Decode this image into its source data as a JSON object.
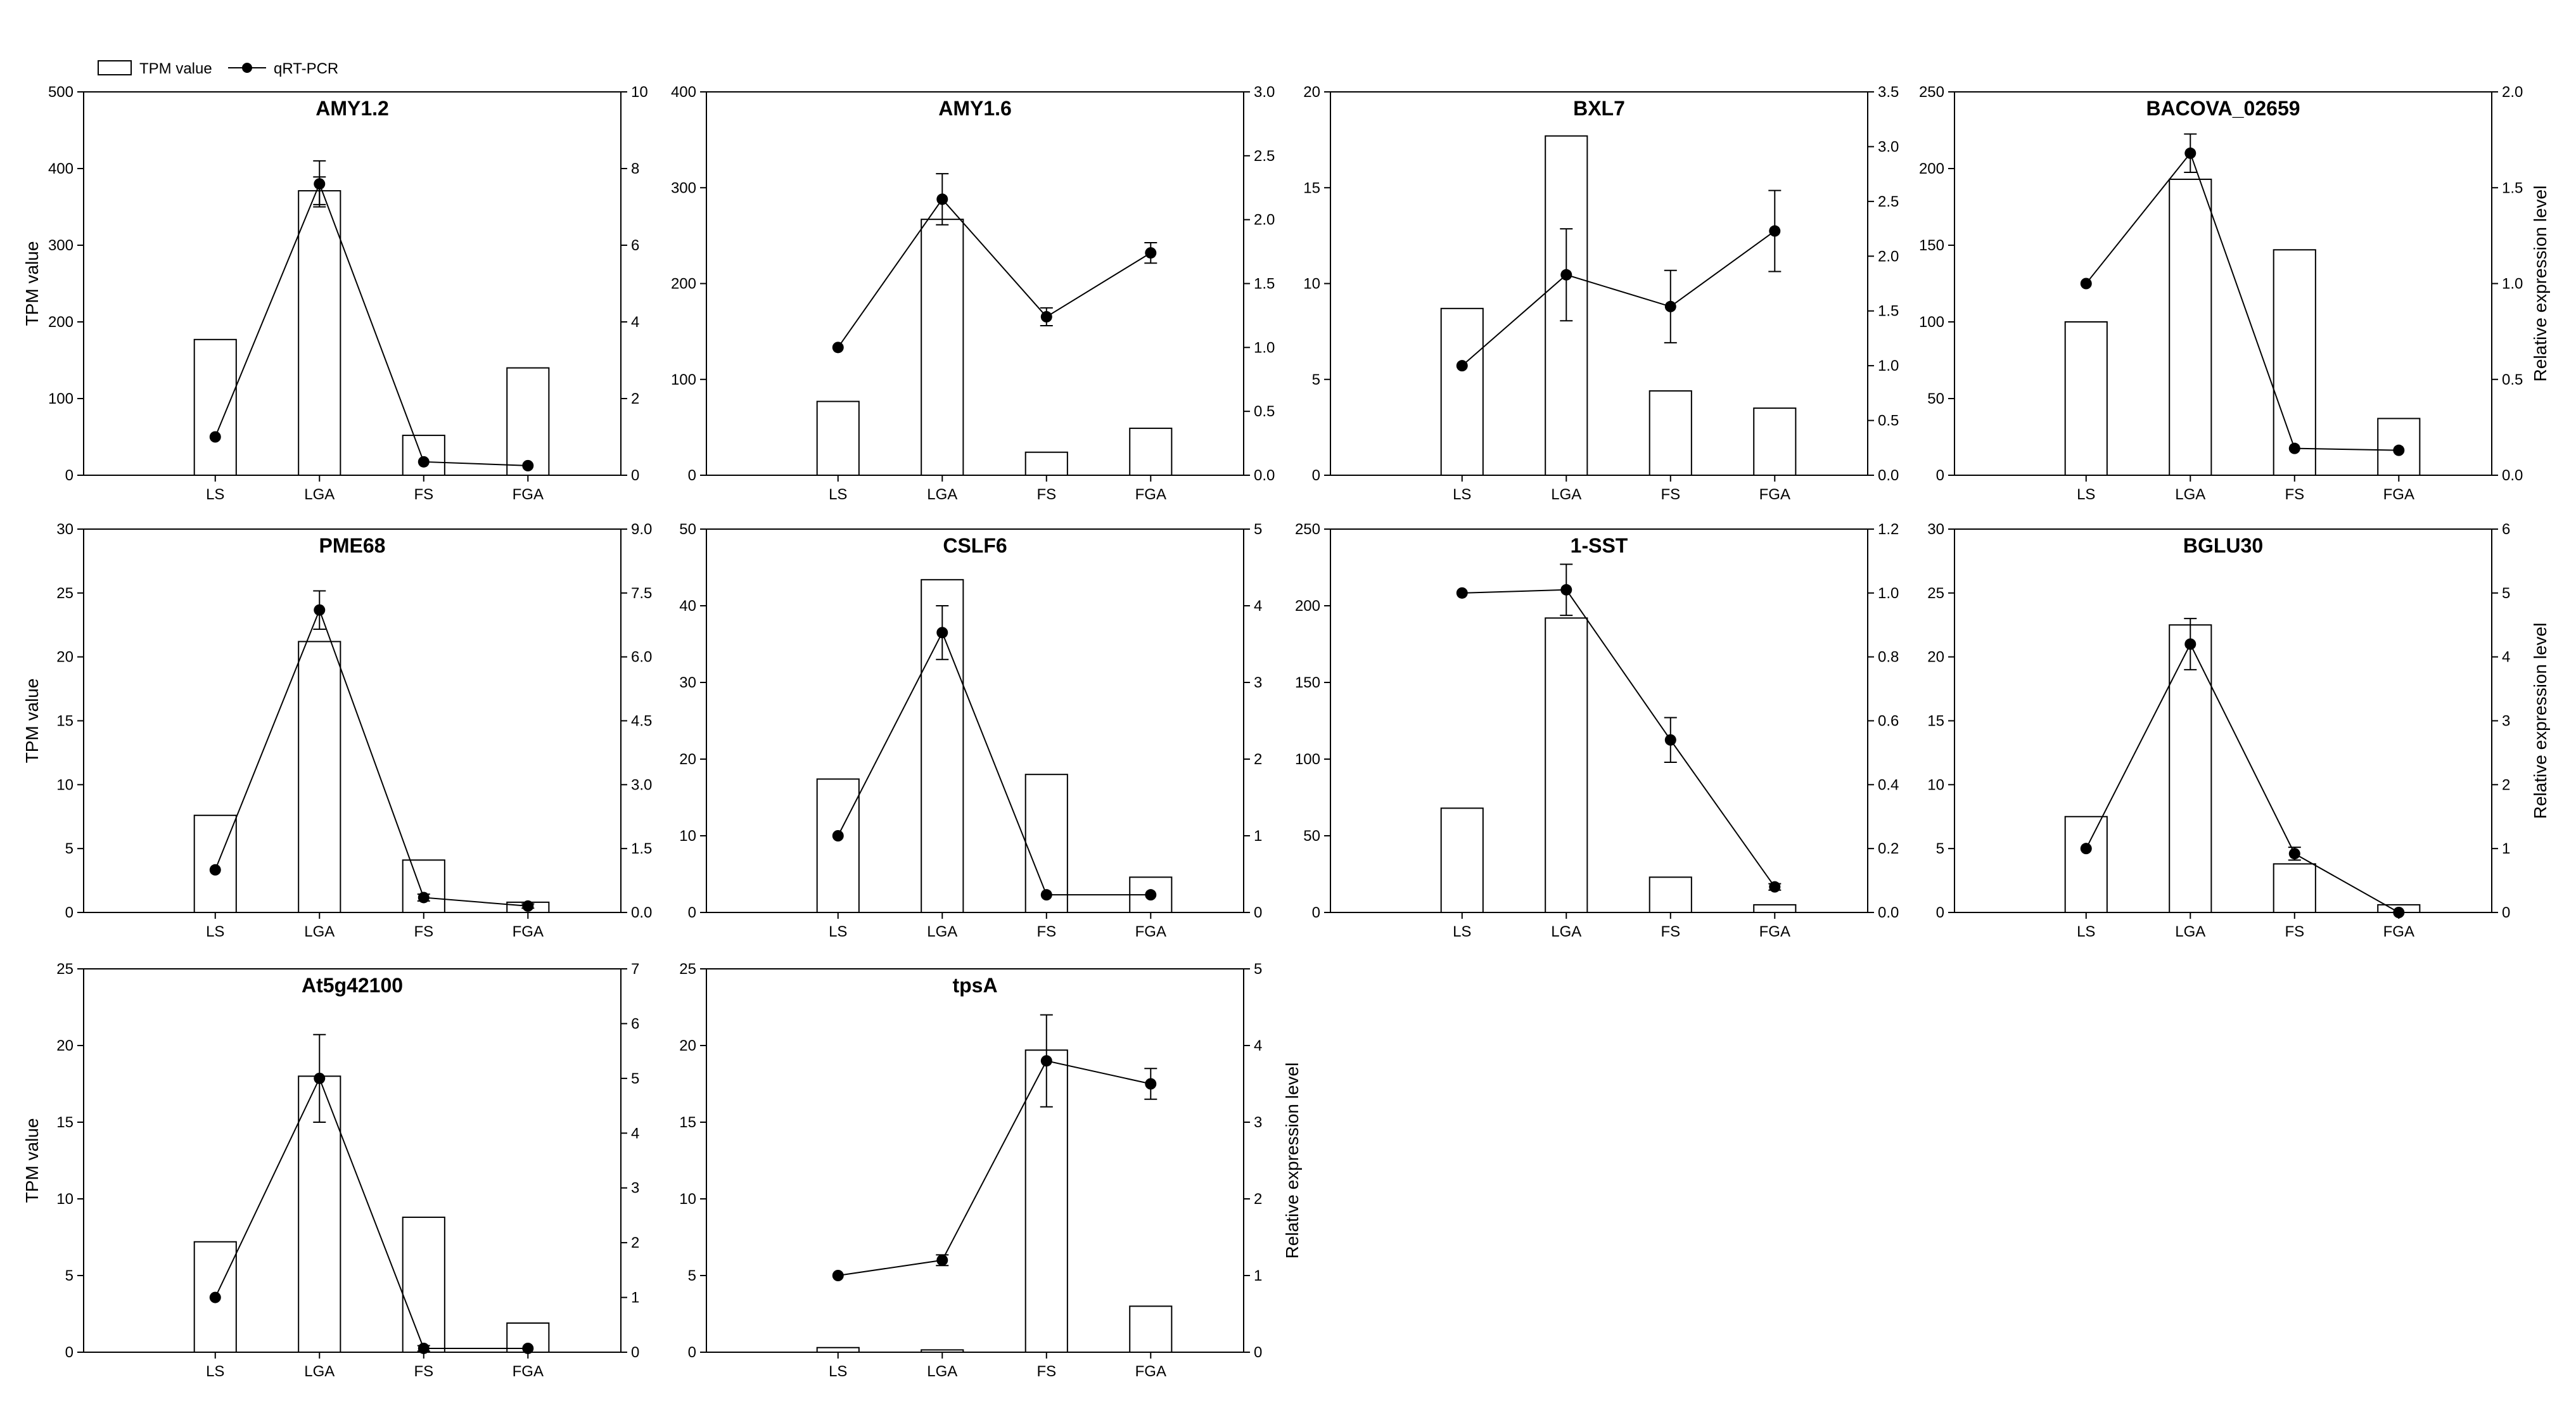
{
  "legend": {
    "bar_label": "TPM value",
    "line_label": "qRT-PCR",
    "placement": "top-left"
  },
  "colors": {
    "bar_fill": "#ffffff",
    "stroke": "#000000",
    "marker": "#000000"
  },
  "chart_data": [
    {
      "type": "bar",
      "title": "AMY1.2",
      "categories": [
        "LS",
        "LGA",
        "FS",
        "FGA"
      ],
      "ylabel": "TPM value",
      "y2label": "",
      "ylim": [
        0,
        500
      ],
      "yticks": [
        "0",
        "100",
        "200",
        "300",
        "400",
        "500"
      ],
      "y2lim": [
        0,
        10
      ],
      "y2ticks": [
        "0",
        "2",
        "4",
        "6",
        "8",
        "10"
      ],
      "series": [
        {
          "name": "TPM value",
          "kind": "bar",
          "values": [
            177,
            371,
            52,
            140
          ],
          "errors": [
            0,
            18,
            0,
            0
          ]
        },
        {
          "name": "qRT-PCR",
          "kind": "line",
          "values": [
            1.0,
            7.6,
            0.35,
            0.25
          ],
          "errors": [
            0,
            0.6,
            0,
            0
          ]
        }
      ]
    },
    {
      "type": "bar",
      "title": "AMY1.6",
      "categories": [
        "LS",
        "LGA",
        "FS",
        "FGA"
      ],
      "ylabel": "",
      "y2label": "",
      "ylim": [
        0,
        400
      ],
      "yticks": [
        "0",
        "100",
        "200",
        "300",
        "400"
      ],
      "y2lim": [
        0,
        3
      ],
      "y2ticks": [
        "0.0",
        "0.5",
        "1.0",
        "1.5",
        "2.0",
        "2.5",
        "3.0"
      ],
      "series": [
        {
          "name": "TPM value",
          "kind": "bar",
          "values": [
            77,
            267,
            24,
            49
          ],
          "errors": [
            0,
            0,
            0,
            0
          ]
        },
        {
          "name": "qRT-PCR",
          "kind": "line",
          "values": [
            1.0,
            2.16,
            1.24,
            1.74
          ],
          "errors": [
            0,
            0.2,
            0.07,
            0.08
          ]
        }
      ]
    },
    {
      "type": "bar",
      "title": "BXL7",
      "categories": [
        "LS",
        "LGA",
        "FS",
        "FGA"
      ],
      "ylabel": "",
      "y2label": "",
      "ylim": [
        0,
        20
      ],
      "yticks": [
        "0",
        "5",
        "10",
        "15",
        "20"
      ],
      "y2lim": [
        0,
        3.5
      ],
      "y2ticks": [
        "0.0",
        "0.5",
        "1.0",
        "1.5",
        "2.0",
        "2.5",
        "3.0",
        "3.5"
      ],
      "series": [
        {
          "name": "TPM value",
          "kind": "bar",
          "values": [
            8.7,
            17.7,
            4.4,
            3.5
          ],
          "errors": [
            0,
            0,
            0,
            0
          ]
        },
        {
          "name": "qRT-PCR",
          "kind": "line",
          "values": [
            1.0,
            1.83,
            1.54,
            2.23
          ],
          "errors": [
            0,
            0.42,
            0.33,
            0.37
          ]
        }
      ]
    },
    {
      "type": "bar",
      "title": "BACOVA_02659",
      "categories": [
        "LS",
        "LGA",
        "FS",
        "FGA"
      ],
      "ylabel": "",
      "y2label": "Relative expression level",
      "ylim": [
        0,
        250
      ],
      "yticks": [
        "0",
        "50",
        "100",
        "150",
        "200",
        "250"
      ],
      "y2lim": [
        0,
        2
      ],
      "y2ticks": [
        "0.0",
        "0.5",
        "1.0",
        "1.5",
        "2.0"
      ],
      "series": [
        {
          "name": "TPM value",
          "kind": "bar",
          "values": [
            100,
            193,
            147,
            37
          ],
          "errors": [
            0,
            0,
            0,
            0
          ]
        },
        {
          "name": "qRT-PCR",
          "kind": "line",
          "values": [
            1.0,
            1.68,
            0.14,
            0.13
          ],
          "errors": [
            0,
            0.1,
            0,
            0
          ]
        }
      ]
    },
    {
      "type": "bar",
      "title": "PME68",
      "categories": [
        "LS",
        "LGA",
        "FS",
        "FGA"
      ],
      "ylabel": "TPM value",
      "y2label": "",
      "ylim": [
        0,
        30
      ],
      "yticks": [
        "0",
        "5",
        "10",
        "15",
        "20",
        "25",
        "30"
      ],
      "y2lim": [
        0,
        9
      ],
      "y2ticks": [
        "0.0",
        "1.5",
        "3.0",
        "4.5",
        "6.0",
        "7.5",
        "9.0"
      ],
      "series": [
        {
          "name": "TPM value",
          "kind": "bar",
          "values": [
            7.6,
            21.2,
            4.1,
            0.8
          ],
          "errors": [
            0,
            0,
            0,
            0
          ]
        },
        {
          "name": "qRT-PCR",
          "kind": "line",
          "values": [
            1.0,
            7.1,
            0.35,
            0.15
          ],
          "errors": [
            0,
            0.45,
            0.08,
            0.05
          ]
        }
      ]
    },
    {
      "type": "bar",
      "title": "CSLF6",
      "categories": [
        "LS",
        "LGA",
        "FS",
        "FGA"
      ],
      "ylabel": "",
      "y2label": "",
      "ylim": [
        0,
        50
      ],
      "yticks": [
        "0",
        "10",
        "20",
        "30",
        "40",
        "50"
      ],
      "y2lim": [
        0,
        5
      ],
      "y2ticks": [
        "0",
        "1",
        "2",
        "3",
        "4",
        "5"
      ],
      "series": [
        {
          "name": "TPM value",
          "kind": "bar",
          "values": [
            17.4,
            43.4,
            18.0,
            4.6
          ],
          "errors": [
            0,
            0,
            0,
            0
          ]
        },
        {
          "name": "qRT-PCR",
          "kind": "line",
          "values": [
            1.0,
            3.65,
            0.23,
            0.23
          ],
          "errors": [
            0,
            0.35,
            0,
            0
          ]
        }
      ]
    },
    {
      "type": "bar",
      "title": "1-SST",
      "categories": [
        "LS",
        "LGA",
        "FS",
        "FGA"
      ],
      "ylabel": "",
      "y2label": "",
      "ylim": [
        0,
        250
      ],
      "yticks": [
        "0",
        "50",
        "100",
        "150",
        "200",
        "250"
      ],
      "y2lim": [
        0,
        1.2
      ],
      "y2ticks": [
        "0.0",
        "0.2",
        "0.4",
        "0.6",
        "0.8",
        "1.0",
        "1.2"
      ],
      "series": [
        {
          "name": "TPM value",
          "kind": "bar",
          "values": [
            68,
            192,
            23,
            5
          ],
          "errors": [
            0,
            0,
            0,
            0
          ]
        },
        {
          "name": "qRT-PCR",
          "kind": "line",
          "values": [
            1.0,
            1.01,
            0.54,
            0.08
          ],
          "errors": [
            0,
            0.08,
            0.07,
            0.01
          ]
        }
      ]
    },
    {
      "type": "bar",
      "title": "BGLU30",
      "categories": [
        "LS",
        "LGA",
        "FS",
        "FGA"
      ],
      "ylabel": "",
      "y2label": "Relative expression level",
      "ylim": [
        0,
        30
      ],
      "yticks": [
        "0",
        "5",
        "10",
        "15",
        "20",
        "25",
        "30"
      ],
      "y2lim": [
        0,
        6
      ],
      "y2ticks": [
        "0",
        "1",
        "2",
        "3",
        "4",
        "5",
        "6"
      ],
      "series": [
        {
          "name": "TPM value",
          "kind": "bar",
          "values": [
            7.5,
            22.5,
            3.8,
            0.6
          ],
          "errors": [
            0,
            0,
            0,
            0
          ]
        },
        {
          "name": "qRT-PCR",
          "kind": "line",
          "values": [
            1.0,
            4.2,
            0.92,
            0.0
          ],
          "errors": [
            0,
            0.4,
            0.1,
            0
          ]
        }
      ]
    },
    {
      "type": "bar",
      "title": "At5g42100",
      "categories": [
        "LS",
        "LGA",
        "FS",
        "FGA"
      ],
      "ylabel": "TPM value",
      "y2label": "",
      "ylim": [
        0,
        25
      ],
      "yticks": [
        "0",
        "5",
        "10",
        "15",
        "20",
        "25"
      ],
      "y2lim": [
        0,
        7
      ],
      "y2ticks": [
        "0",
        "1",
        "2",
        "3",
        "4",
        "5",
        "6",
        "7"
      ],
      "series": [
        {
          "name": "TPM value",
          "kind": "bar",
          "values": [
            7.2,
            18.0,
            8.8,
            1.9
          ],
          "errors": [
            0,
            0,
            0,
            0
          ]
        },
        {
          "name": "qRT-PCR",
          "kind": "line",
          "values": [
            1.0,
            5.0,
            0.07,
            0.07
          ],
          "errors": [
            0,
            0.8,
            0.05,
            0
          ]
        }
      ]
    },
    {
      "type": "bar",
      "title": "tpsA",
      "categories": [
        "LS",
        "LGA",
        "FS",
        "FGA"
      ],
      "ylabel": "",
      "y2label": "Relative expression level",
      "ylim": [
        0,
        25
      ],
      "yticks": [
        "0",
        "5",
        "10",
        "15",
        "20",
        "25"
      ],
      "y2lim": [
        0,
        5
      ],
      "y2ticks": [
        "0",
        "1",
        "2",
        "3",
        "4",
        "5"
      ],
      "series": [
        {
          "name": "TPM value",
          "kind": "bar",
          "values": [
            0.3,
            0.15,
            19.7,
            3.0
          ],
          "errors": [
            0,
            0,
            0,
            0
          ]
        },
        {
          "name": "qRT-PCR",
          "kind": "line",
          "values": [
            1.0,
            1.2,
            3.8,
            3.5
          ],
          "errors": [
            0,
            0.07,
            0.6,
            0.2
          ]
        }
      ]
    }
  ]
}
